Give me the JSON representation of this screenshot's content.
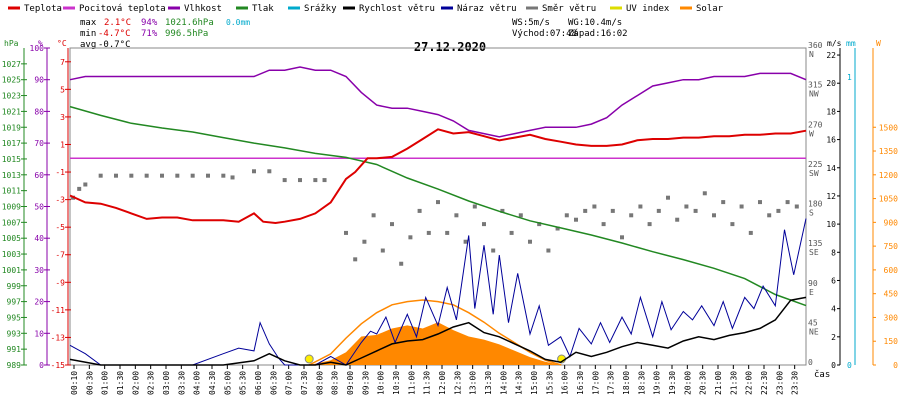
{
  "legend": [
    {
      "label": "Teplota",
      "color": "#dd0000"
    },
    {
      "label": "Pocitová teplota",
      "color": "#cc33cc"
    },
    {
      "label": "Vlhkost",
      "color": "#8800aa"
    },
    {
      "label": "Tlak",
      "color": "#228822"
    },
    {
      "label": "Srážky",
      "color": "#00aacc"
    },
    {
      "label": "Rychlost větru",
      "color": "#000000"
    },
    {
      "label": "Náraz větru",
      "color": "#000099"
    },
    {
      "label": "Směr větru",
      "color": "#777777"
    },
    {
      "label": "UV index",
      "color": "#dddd00"
    },
    {
      "label": "Solar",
      "color": "#ff8800"
    }
  ],
  "stats": {
    "max_label": "max",
    "max_temp": "2.1°C",
    "max_hum": "94%",
    "max_press": "1021.6hPa",
    "rain": "0.0mm",
    "min_label": "min",
    "min_temp": "-4.7°C",
    "min_hum": "71%",
    "min_press": "996.5hPa",
    "avg_label": "avg",
    "avg_temp": "-0.7°C",
    "ws": "WS:5m/s",
    "wg": "WG:10.4m/s",
    "sunrise": "Východ:07:48",
    "sunset": "Západ:16:02"
  },
  "chart_data": {
    "type": "line",
    "title": "27.12.2020",
    "xlabel": "čas",
    "x_ticks": [
      "00:10",
      "00:30",
      "01:00",
      "01:30",
      "02:00",
      "02:30",
      "03:00",
      "03:30",
      "04:00",
      "04:30",
      "05:00",
      "05:30",
      "06:00",
      "06:30",
      "07:00",
      "07:30",
      "08:00",
      "08:30",
      "09:00",
      "09:30",
      "10:00",
      "10:30",
      "11:00",
      "11:30",
      "12:00",
      "12:30",
      "13:00",
      "13:30",
      "14:00",
      "14:30",
      "15:00",
      "15:30",
      "16:00",
      "16:30",
      "17:00",
      "17:30",
      "18:00",
      "18:30",
      "19:00",
      "19:30",
      "20:00",
      "20:30",
      "21:00",
      "21:30",
      "22:00",
      "22:30",
      "23:00",
      "23:30"
    ],
    "axes": {
      "pressure": {
        "unit": "hPa",
        "color": "#228822",
        "ticks": [
          "989",
          "991",
          "993",
          "995",
          "997",
          "999",
          "1001",
          "1003",
          "1005",
          "1007",
          "1009",
          "1011",
          "1013",
          "1015",
          "1017",
          "1019",
          "1021",
          "1023",
          "1025",
          "1027"
        ],
        "range": [
          989,
          1029
        ]
      },
      "humidity": {
        "unit": "%",
        "color": "#8800aa",
        "ticks": [
          "0",
          "10",
          "20",
          "30",
          "40",
          "50",
          "60",
          "70",
          "80",
          "90",
          "100"
        ],
        "range": [
          0,
          100
        ]
      },
      "temperature": {
        "unit": "°C",
        "color": "#dd0000",
        "ticks": [
          "-15",
          "-13",
          "-11",
          "-9",
          "-7",
          "-5",
          "-3",
          "-1",
          "1",
          "3",
          "5",
          "7"
        ],
        "range": [
          -15,
          8
        ]
      },
      "direction": {
        "ticks": [
          "0",
          "45",
          "90",
          "135",
          "180",
          "225",
          "270",
          "315",
          "360"
        ],
        "dir_labels": [
          "",
          "NE",
          "E",
          "SE",
          "S",
          "SW",
          "W",
          "NW",
          "N"
        ],
        "range": [
          0,
          360
        ]
      },
      "wind": {
        "unit": "m/s",
        "ticks": [
          "0",
          "2",
          "4",
          "6",
          "8",
          "10",
          "12",
          "14",
          "16",
          "18",
          "20",
          "22"
        ],
        "range": [
          0,
          22.5
        ]
      },
      "rain": {
        "unit": "mm",
        "color": "#00aacc",
        "ticks": [
          "0",
          "1"
        ],
        "range": [
          0,
          1.1
        ]
      },
      "solar": {
        "unit": "W",
        "color": "#ff8800",
        "ticks": [
          "0",
          "150",
          "300",
          "450",
          "600",
          "750",
          "900",
          "1050",
          "1200",
          "1350",
          "1500"
        ],
        "range": [
          0,
          2000
        ]
      }
    },
    "series": [
      {
        "name": "Teplota",
        "axis": "temperature",
        "color": "#dd0000",
        "x": [
          0,
          0.5,
          1,
          1.5,
          2,
          2.5,
          3,
          3.5,
          4,
          4.5,
          5,
          5.5,
          6,
          6.3,
          6.7,
          7,
          7.5,
          8,
          8.5,
          9,
          9.3,
          9.7,
          10,
          10.5,
          11,
          11.5,
          12,
          12.5,
          13,
          13.5,
          14,
          14.5,
          15,
          15.5,
          16,
          16.5,
          17,
          17.5,
          18,
          18.5,
          19,
          19.5,
          20,
          20.5,
          21,
          21.5,
          22,
          22.5,
          23,
          23.5,
          24
        ],
        "values": [
          -2.7,
          -3.2,
          -3.3,
          -3.6,
          -4.0,
          -4.4,
          -4.3,
          -4.3,
          -4.5,
          -4.5,
          -4.5,
          -4.6,
          -4.0,
          -4.6,
          -4.7,
          -4.6,
          -4.4,
          -4.0,
          -3.2,
          -1.5,
          -1.0,
          0.0,
          0.0,
          0.1,
          0.7,
          1.4,
          2.1,
          1.8,
          1.9,
          1.6,
          1.3,
          1.5,
          1.7,
          1.4,
          1.2,
          1.0,
          0.9,
          0.9,
          1.0,
          1.3,
          1.4,
          1.4,
          1.5,
          1.5,
          1.6,
          1.6,
          1.7,
          1.7,
          1.8,
          1.8,
          2.0
        ]
      },
      {
        "name": "Pocitová teplota",
        "axis": "temperature",
        "color": "#cc33cc",
        "x": [
          0,
          24
        ],
        "values": [
          0,
          0
        ]
      },
      {
        "name": "Vlhkost",
        "axis": "humidity",
        "color": "#8800aa",
        "x": [
          0,
          0.5,
          1,
          2,
          3,
          4,
          5,
          6,
          6.5,
          7,
          7.5,
          8,
          8.5,
          9,
          9.5,
          10,
          10.5,
          11,
          11.5,
          12,
          12.5,
          13,
          13.5,
          14,
          14.5,
          15,
          15.5,
          16,
          16.5,
          17,
          17.5,
          18,
          18.5,
          19,
          19.5,
          20,
          20.5,
          21,
          21.5,
          22,
          22.5,
          23,
          23.5,
          24
        ],
        "values": [
          90,
          91,
          91,
          91,
          91,
          91,
          91,
          91,
          93,
          93,
          94,
          93,
          93,
          91,
          86,
          82,
          81,
          81,
          80,
          79,
          77,
          74,
          73,
          72,
          73,
          74,
          75,
          75,
          75,
          76,
          78,
          82,
          85,
          88,
          89,
          90,
          90,
          91,
          91,
          91,
          92,
          92,
          92,
          90
        ]
      },
      {
        "name": "Tlak",
        "axis": "pressure",
        "color": "#228822",
        "x": [
          0,
          1,
          2,
          3,
          4,
          5,
          6,
          7,
          8,
          9,
          10,
          11,
          12,
          13,
          14,
          15,
          16,
          17,
          18,
          19,
          20,
          21,
          22,
          23,
          24
        ],
        "values": [
          1021.6,
          1020.5,
          1019.5,
          1018.9,
          1018.4,
          1017.7,
          1017.0,
          1016.4,
          1015.7,
          1015.2,
          1014.3,
          1012.6,
          1011.2,
          1009.7,
          1008.4,
          1007.2,
          1006.3,
          1005.4,
          1004.4,
          1003.3,
          1002.3,
          1001.2,
          999.9,
          997.9,
          996.5
        ]
      },
      {
        "name": "Rychlost větru",
        "axis": "wind",
        "color": "#000000",
        "x": [
          0,
          1,
          2,
          3,
          4,
          5,
          6,
          6.5,
          7,
          7.5,
          8,
          8.5,
          9,
          9.5,
          10,
          10.5,
          11,
          11.5,
          12,
          12.5,
          13,
          13.5,
          14,
          14.5,
          15,
          15.5,
          16,
          16.5,
          17,
          17.5,
          18,
          18.5,
          19,
          19.5,
          20,
          20.5,
          21,
          21.5,
          22,
          22.5,
          23,
          23.5,
          24
        ],
        "values": [
          0.4,
          0,
          0,
          0,
          0,
          0,
          0.3,
          0.8,
          0.3,
          0,
          0,
          0.2,
          0,
          0.5,
          1.0,
          1.5,
          1.7,
          1.8,
          2.2,
          2.7,
          3.0,
          2.3,
          2.0,
          1.5,
          1.0,
          0.4,
          0.2,
          0.9,
          0.6,
          0.9,
          1.3,
          1.6,
          1.4,
          1.2,
          1.7,
          2.0,
          1.8,
          2.1,
          2.3,
          2.6,
          3.2,
          4.6,
          4.8
        ]
      },
      {
        "name": "Náraz větru",
        "axis": "wind",
        "color": "#000099",
        "x": [
          0,
          0.5,
          1,
          2,
          3,
          4,
          5,
          5.5,
          6,
          6.2,
          6.5,
          6.8,
          7,
          7.5,
          8,
          8.5,
          9,
          9.5,
          9.8,
          10,
          10.3,
          10.6,
          11,
          11.3,
          11.6,
          12,
          12.3,
          12.6,
          13,
          13.2,
          13.5,
          13.8,
          14,
          14.3,
          14.6,
          15,
          15.3,
          15.6,
          16,
          16.3,
          16.6,
          17,
          17.3,
          17.6,
          18,
          18.3,
          18.6,
          19,
          19.3,
          19.6,
          20,
          20.3,
          20.6,
          21,
          21.3,
          21.6,
          22,
          22.3,
          22.6,
          23,
          23.3,
          23.6,
          24
        ],
        "values": [
          1.4,
          0.8,
          0,
          0,
          0,
          0,
          0.8,
          1.2,
          1.0,
          3.0,
          1.5,
          0.5,
          0,
          0,
          0,
          0.6,
          0,
          1.6,
          2.4,
          2.2,
          3.4,
          1.6,
          3.6,
          2.0,
          4.8,
          2.8,
          5.5,
          3.2,
          9.2,
          4.0,
          8.5,
          3.6,
          7.8,
          3.0,
          6.5,
          2.2,
          4.2,
          1.4,
          2.0,
          0.6,
          2.6,
          1.5,
          3.0,
          1.6,
          3.4,
          2.2,
          4.8,
          2.0,
          4.5,
          2.5,
          3.8,
          3.2,
          4.2,
          2.8,
          4.5,
          2.6,
          4.8,
          4.0,
          5.6,
          4.2,
          9.6,
          6.4,
          10.4
        ]
      },
      {
        "name": "Směr větru",
        "axis": "direction",
        "color": "#777777",
        "x": [
          0.1,
          0.3,
          0.5,
          1,
          1.5,
          2,
          2.5,
          3,
          3.5,
          4,
          4.5,
          5,
          5.3,
          6,
          6.5,
          7,
          7.5,
          8,
          8.3,
          9,
          9.3,
          9.6,
          9.9,
          10.2,
          10.5,
          10.8,
          11.1,
          11.4,
          11.7,
          12,
          12.3,
          12.6,
          12.9,
          13.2,
          13.5,
          13.8,
          14.1,
          14.4,
          14.7,
          15,
          15.3,
          15.6,
          15.9,
          16.2,
          16.5,
          16.8,
          17.1,
          17.4,
          17.7,
          18,
          18.3,
          18.6,
          18.9,
          19.2,
          19.5,
          19.8,
          20.1,
          20.4,
          20.7,
          21,
          21.3,
          21.6,
          21.9,
          22.2,
          22.5,
          22.8,
          23.1,
          23.4,
          23.7
        ],
        "values": [
          190,
          200,
          205,
          215,
          215,
          215,
          215,
          215,
          215,
          215,
          215,
          215,
          213,
          220,
          220,
          210,
          210,
          210,
          210,
          150,
          120,
          140,
          170,
          130,
          160,
          115,
          145,
          175,
          150,
          185,
          150,
          170,
          140,
          180,
          160,
          130,
          175,
          150,
          170,
          140,
          160,
          130,
          155,
          170,
          165,
          175,
          180,
          160,
          175,
          145,
          170,
          180,
          160,
          175,
          190,
          165,
          180,
          175,
          195,
          170,
          185,
          160,
          180,
          150,
          185,
          170,
          175,
          185,
          180
        ]
      },
      {
        "name": "Solar",
        "axis": "solar",
        "color": "#ff8800",
        "x": [
          7.8,
          8.5,
          9,
          9.5,
          10,
          10.5,
          11,
          11.5,
          12,
          12.5,
          13,
          13.5,
          14,
          14.5,
          15,
          15.5,
          16.02
        ],
        "values": [
          0,
          30,
          80,
          180,
          190,
          230,
          250,
          230,
          270,
          220,
          180,
          160,
          130,
          90,
          50,
          20,
          0
        ]
      },
      {
        "name": "Solar max",
        "axis": "solar",
        "color": "#ff8800",
        "x": [
          7.8,
          8.5,
          9,
          9.5,
          10,
          10.5,
          11,
          11.5,
          12,
          12.5,
          13,
          13.5,
          14,
          14.5,
          15,
          15.5,
          16.02
        ],
        "values": [
          0,
          70,
          170,
          260,
          330,
          380,
          400,
          410,
          400,
          380,
          330,
          270,
          200,
          140,
          80,
          30,
          0
        ]
      }
    ]
  }
}
